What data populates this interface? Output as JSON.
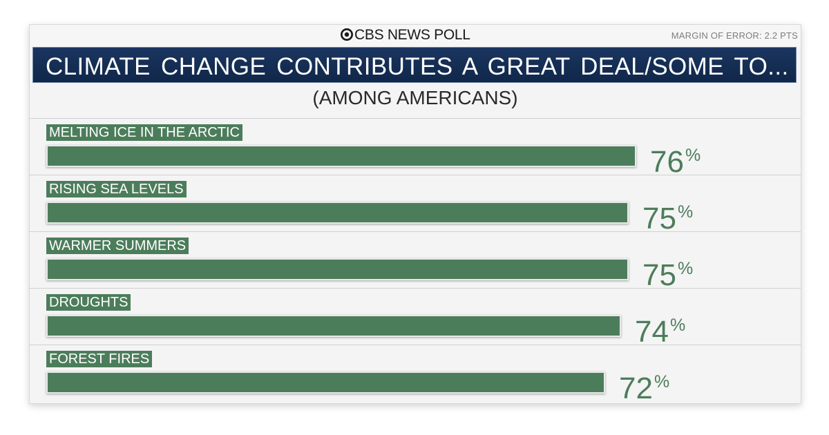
{
  "header": {
    "brand": "CBS NEWS POLL",
    "margin_of_error": "MARGIN OF ERROR: 2.2 PTS"
  },
  "chart_data": {
    "type": "bar",
    "orientation": "horizontal",
    "title": "CLIMATE CHANGE CONTRIBUTES A GREAT DEAL/SOME TO...",
    "subtitle": "(AMONG AMERICANS)",
    "categories": [
      "MELTING ICE IN THE ARCTIC",
      "RISING SEA LEVELS",
      "WARMER SUMMERS",
      "DROUGHTS",
      "FOREST FIRES"
    ],
    "values": [
      76,
      75,
      75,
      74,
      72
    ],
    "value_suffix": "%",
    "xlim": [
      0,
      100
    ],
    "grid": false,
    "legend": "none",
    "bar_color": "#4c7d5b",
    "title_band_color": "#13294b"
  }
}
